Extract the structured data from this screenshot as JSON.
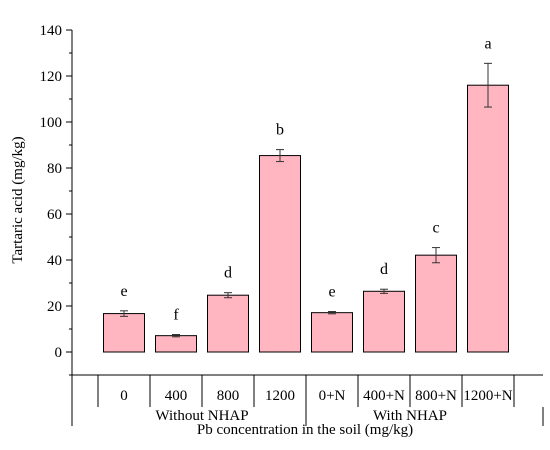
{
  "chart_data": {
    "type": "bar",
    "ylabel": "Tartaric acid (mg/kg)",
    "xlabel": "Pb concentration in the soil (mg/kg)",
    "ylim": [
      -10,
      140
    ],
    "yticks": [
      0,
      20,
      40,
      60,
      80,
      100,
      120,
      140
    ],
    "bar_color": "#FFB6C1",
    "bar_edge_color": "#000000",
    "grid": false,
    "groups": [
      {
        "label": "Without NHAP",
        "start": 0,
        "end": 3
      },
      {
        "label": "With NHAP",
        "start": 4,
        "end": 7
      }
    ],
    "categories": [
      "0",
      "400",
      "800",
      "1200",
      "0+N",
      "400+N",
      "800+N",
      "1200+N"
    ],
    "values": [
      16.7,
      7.1,
      24.7,
      85.4,
      17.1,
      26.4,
      42.1,
      116.0
    ],
    "errors": [
      1.2,
      0.5,
      1.1,
      2.6,
      0.5,
      0.9,
      3.3,
      9.5
    ],
    "significance": [
      "e",
      "f",
      "d",
      "b",
      "e",
      "d",
      "c",
      "a"
    ]
  }
}
